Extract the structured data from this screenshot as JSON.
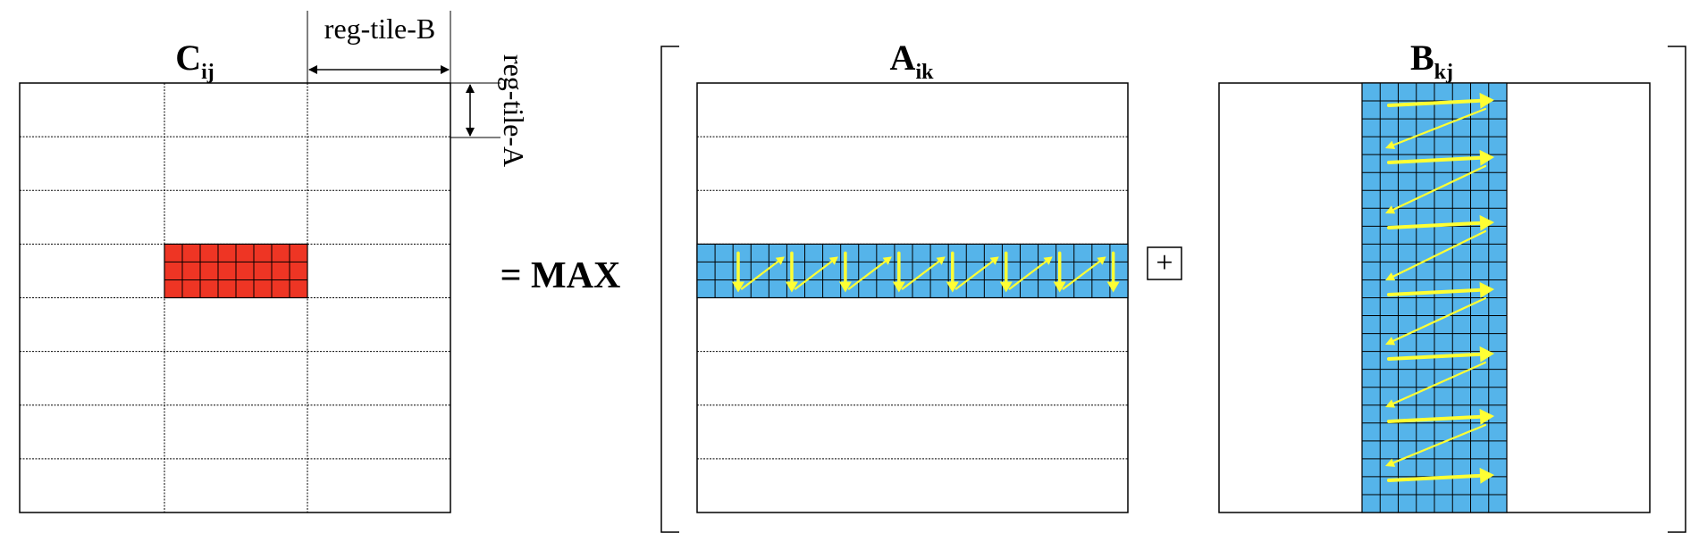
{
  "labels": {
    "c_main": "C",
    "c_sub": "ij",
    "a_main": "A",
    "a_sub": "ik",
    "b_main": "B",
    "b_sub": "kj",
    "reg_tile_b": "reg-tile-B",
    "reg_tile_a": "reg-tile-A",
    "equals_max": "= MAX",
    "plus": "+"
  },
  "colors": {
    "c_tile": "#ee3524",
    "a_strip": "#55b4ea",
    "b_strip": "#55b4ea",
    "arrow": "#ffff33"
  },
  "matrix_c": {
    "row_bands": 8,
    "col_bands": 3,
    "highlight_row": 3,
    "highlight_col": 1,
    "tile_cells_x": 8,
    "tile_cells_y": 3
  },
  "matrix_a": {
    "row_bands": 8,
    "highlight_row": 3,
    "cells_x": 24,
    "cells_y": 3
  },
  "matrix_b": {
    "cells_x": 8,
    "cells_y": 24
  }
}
